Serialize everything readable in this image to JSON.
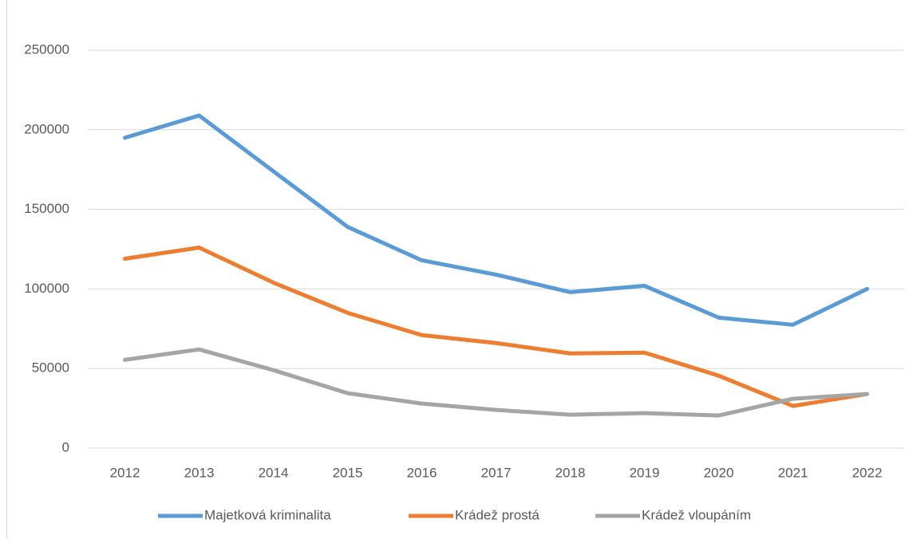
{
  "chart_data": {
    "type": "line",
    "categories": [
      "2012",
      "2013",
      "2014",
      "2015",
      "2016",
      "2017",
      "2018",
      "2019",
      "2020",
      "2021",
      "2022"
    ],
    "series": [
      {
        "name": "Majetková kriminalita",
        "color": "#5b9bd5",
        "values": [
          195000,
          209000,
          174000,
          139000,
          118000,
          109000,
          98000,
          102000,
          82000,
          77500,
          100000
        ]
      },
      {
        "name": "Krádež prostá",
        "color": "#ed7d31",
        "values": [
          119000,
          126000,
          104000,
          85000,
          71000,
          66000,
          59500,
          60000,
          45500,
          26500,
          34000
        ]
      },
      {
        "name": "Krádež vloupáním",
        "color": "#a5a5a5",
        "values": [
          55500,
          62000,
          49000,
          34500,
          28000,
          24000,
          21000,
          22000,
          20500,
          31000,
          34000
        ]
      }
    ],
    "ylim": [
      0,
      250000
    ],
    "yticks": [
      0,
      50000,
      100000,
      150000,
      200000,
      250000
    ],
    "grid": true,
    "legend": "bottom"
  }
}
